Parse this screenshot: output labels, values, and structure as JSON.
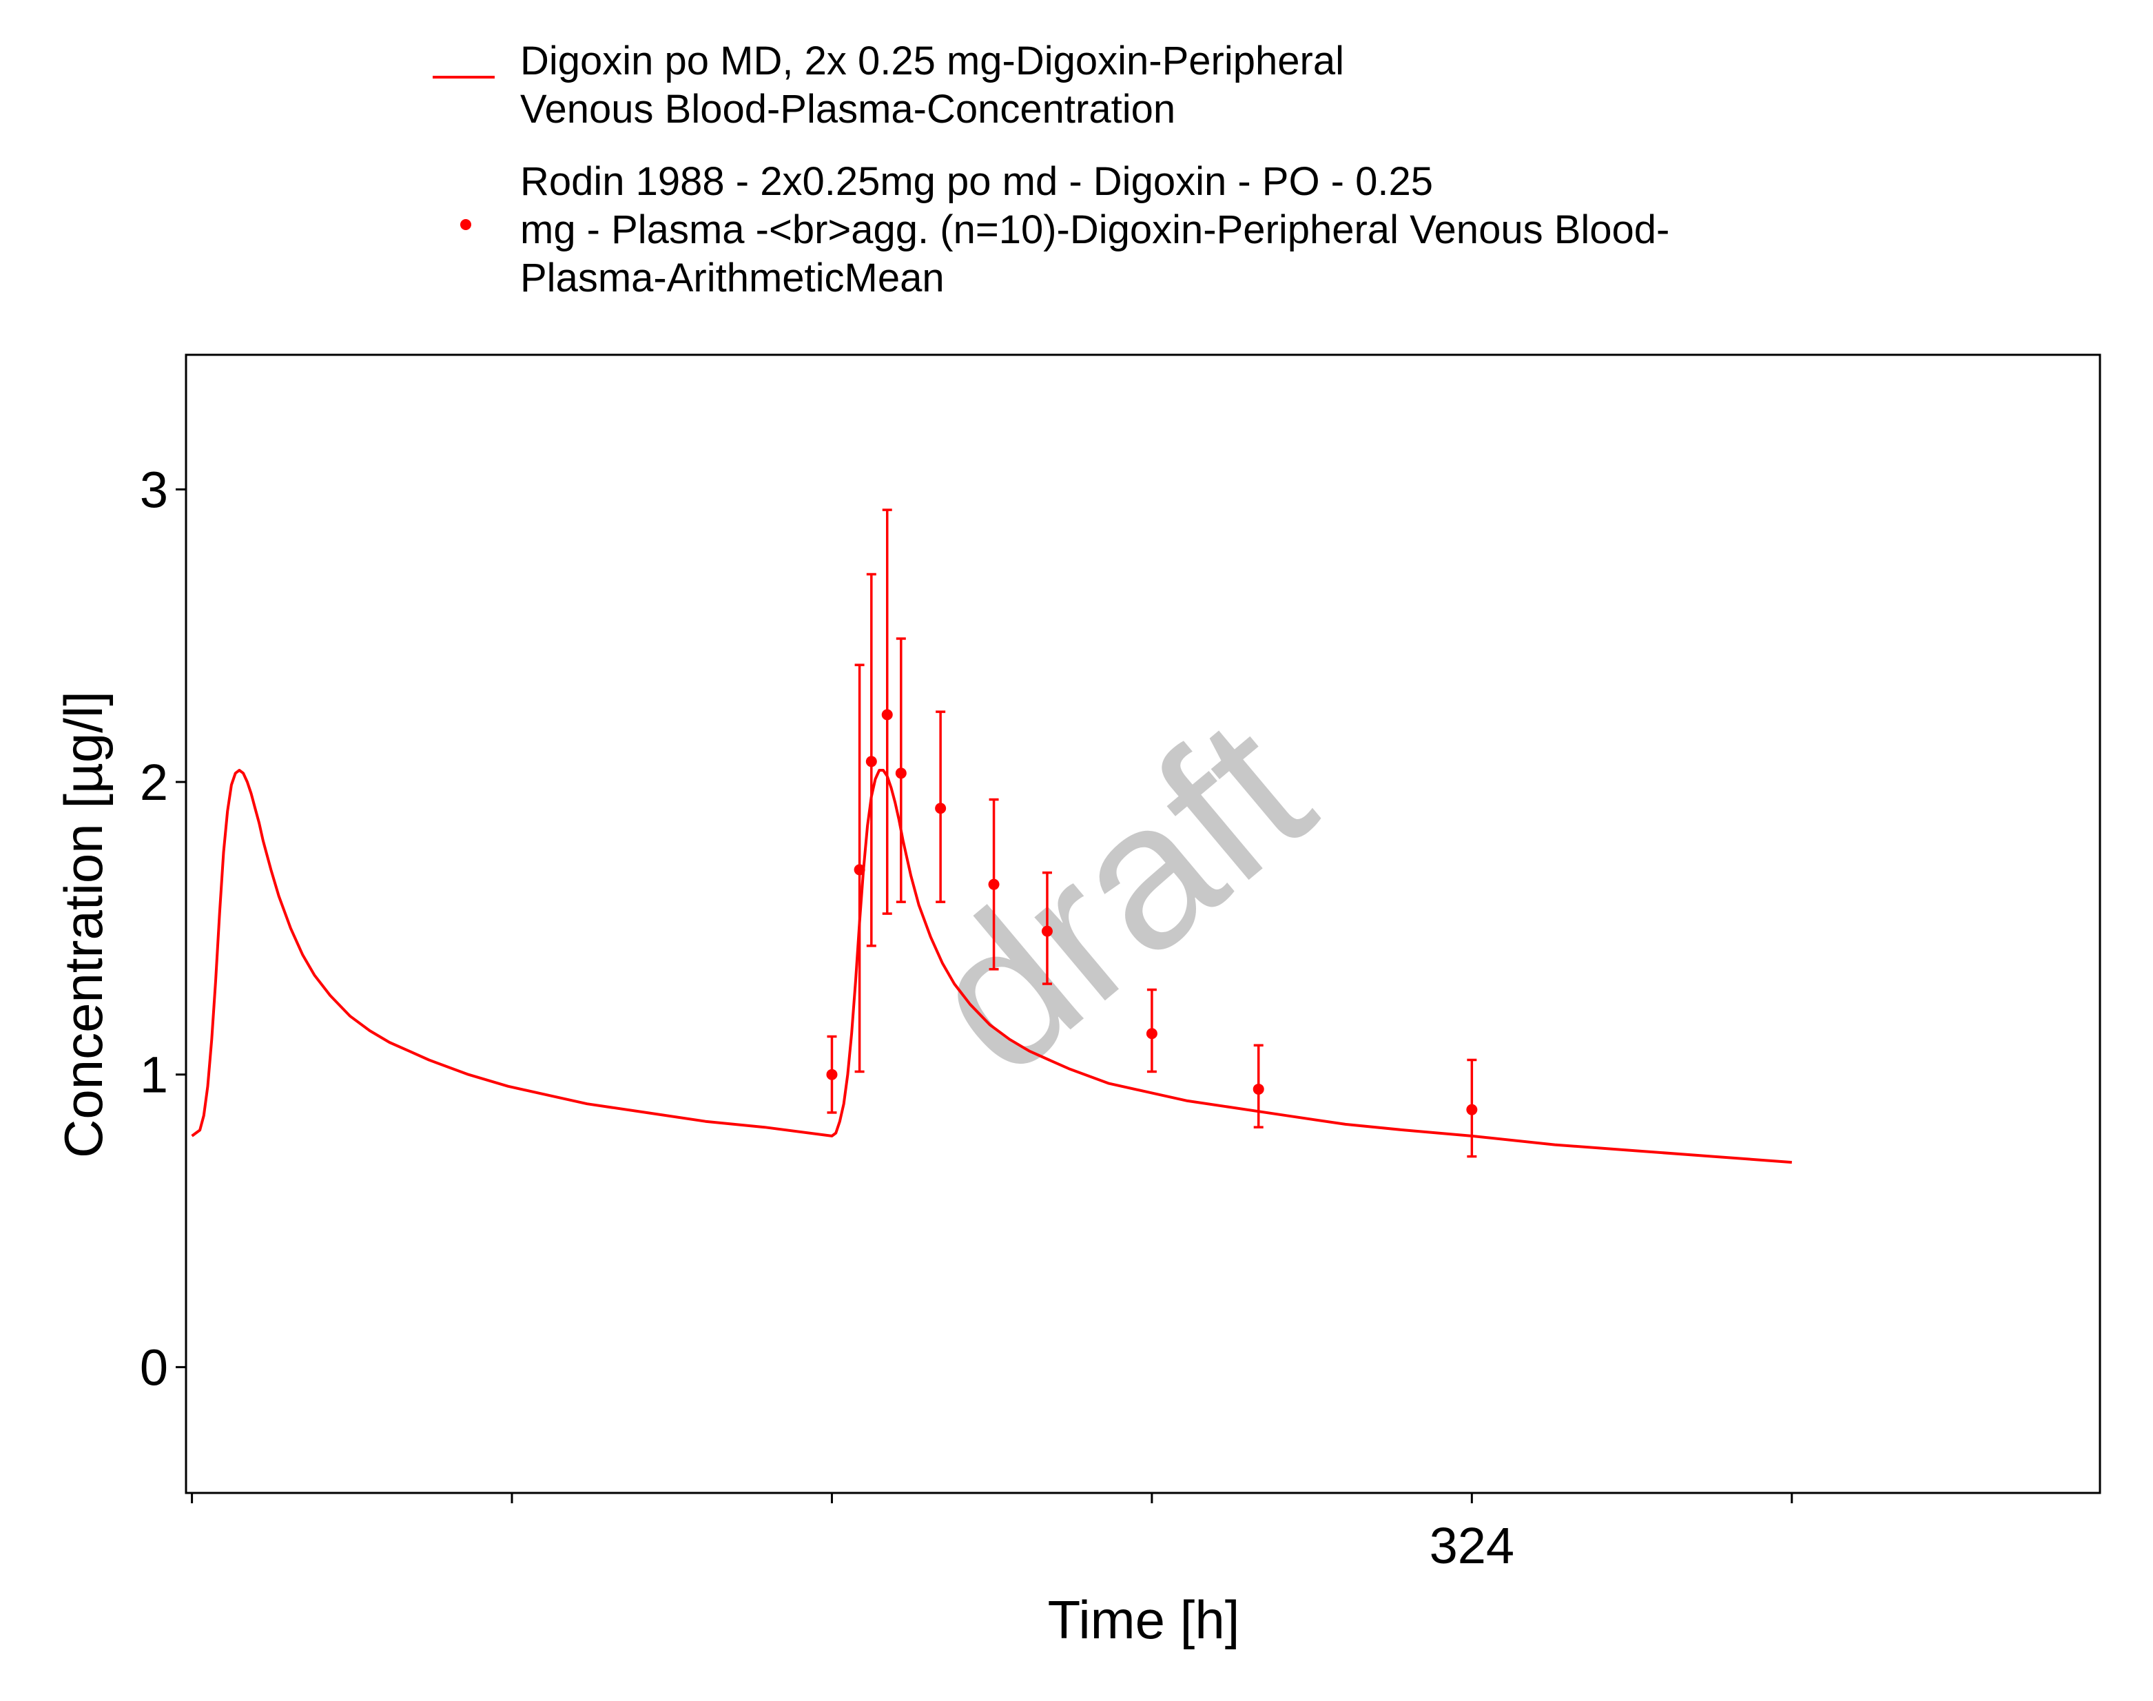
{
  "chart_data": {
    "type": "line",
    "xlabel": "Time [h]",
    "ylabel": "Concentration [µg/l]",
    "xlim": [
      -1.5,
      483
    ],
    "ylim": [
      -0.43,
      3.46
    ],
    "x_ticks": [
      0,
      81,
      162,
      243,
      324,
      405
    ],
    "x_tick_labels": [
      "",
      "",
      "",
      "",
      "324",
      ""
    ],
    "y_ticks": [
      0,
      1,
      2,
      3
    ],
    "y_tick_labels": [
      "0",
      "1",
      "2",
      "3"
    ],
    "grid": false,
    "legend_position": "top",
    "watermark": "draft",
    "colors": {
      "series": "#ff0000",
      "frame": "#000000",
      "watermark": "#c8c8c8"
    },
    "series": [
      {
        "name": "Digoxin po MD, 2x 0.25 mg-Digoxin-Peripheral Venous Blood-Plasma-Concentration",
        "legend_lines": [
          "Digoxin po MD, 2x 0.25 mg-Digoxin-Peripheral",
          "Venous Blood-Plasma-Concentration"
        ],
        "kind": "line",
        "x": [
          0,
          1,
          2,
          3,
          4,
          5,
          6,
          7,
          8,
          9,
          10,
          11,
          12,
          13,
          14,
          15,
          16,
          17,
          18,
          20,
          22,
          25,
          28,
          31,
          35,
          40,
          45,
          50,
          55,
          60,
          70,
          80,
          90,
          100,
          115,
          130,
          145,
          162,
          163,
          164,
          165,
          166,
          167,
          168,
          169,
          170,
          171,
          172,
          173,
          174,
          175,
          176,
          177,
          178,
          179,
          180,
          182,
          184,
          187,
          190,
          193,
          197,
          202,
          207,
          212,
          217,
          222,
          232,
          242,
          252,
          262,
          277,
          292,
          307,
          324,
          345,
          365,
          385,
          405
        ],
        "y": [
          0.79,
          0.8,
          0.81,
          0.86,
          0.96,
          1.12,
          1.32,
          1.55,
          1.76,
          1.9,
          1.99,
          2.03,
          2.04,
          2.03,
          2.0,
          1.96,
          1.91,
          1.86,
          1.8,
          1.7,
          1.61,
          1.5,
          1.41,
          1.34,
          1.27,
          1.2,
          1.15,
          1.11,
          1.08,
          1.05,
          1.0,
          0.96,
          0.93,
          0.9,
          0.87,
          0.84,
          0.82,
          0.79,
          0.8,
          0.84,
          0.9,
          1.0,
          1.14,
          1.32,
          1.52,
          1.7,
          1.85,
          1.95,
          2.01,
          2.04,
          2.04,
          2.02,
          1.98,
          1.93,
          1.87,
          1.8,
          1.68,
          1.58,
          1.47,
          1.38,
          1.31,
          1.24,
          1.17,
          1.12,
          1.08,
          1.05,
          1.02,
          0.97,
          0.94,
          0.91,
          0.89,
          0.86,
          0.83,
          0.81,
          0.79,
          0.76,
          0.74,
          0.72,
          0.7
        ]
      },
      {
        "name": "Rodin 1988 - 2x0.25mg po md - Digoxin - PO - 0.25 mg - Plasma -<br>agg. (n=10)-Digoxin-Peripheral Venous Blood-Plasma-ArithmeticMean",
        "legend_lines": [
          "Rodin 1988 - 2x0.25mg po md - Digoxin - PO - 0.25",
          "mg - Plasma -<br>agg. (n=10)-Digoxin-Peripheral Venous Blood-",
          "Plasma-ArithmeticMean"
        ],
        "kind": "scatter_errorbar",
        "x": [
          162,
          169,
          172,
          176,
          179.5,
          189.5,
          203,
          216.5,
          243,
          270,
          324
        ],
        "y": [
          1.0,
          1.7,
          2.07,
          2.23,
          2.03,
          1.91,
          1.65,
          1.49,
          1.14,
          0.95,
          0.88
        ],
        "y_lower": [
          0.87,
          1.01,
          1.44,
          1.55,
          1.59,
          1.59,
          1.36,
          1.31,
          1.01,
          0.82,
          0.72
        ],
        "y_upper": [
          1.13,
          2.4,
          2.71,
          2.93,
          2.49,
          2.24,
          1.94,
          1.69,
          1.29,
          1.1,
          1.05
        ]
      }
    ]
  }
}
